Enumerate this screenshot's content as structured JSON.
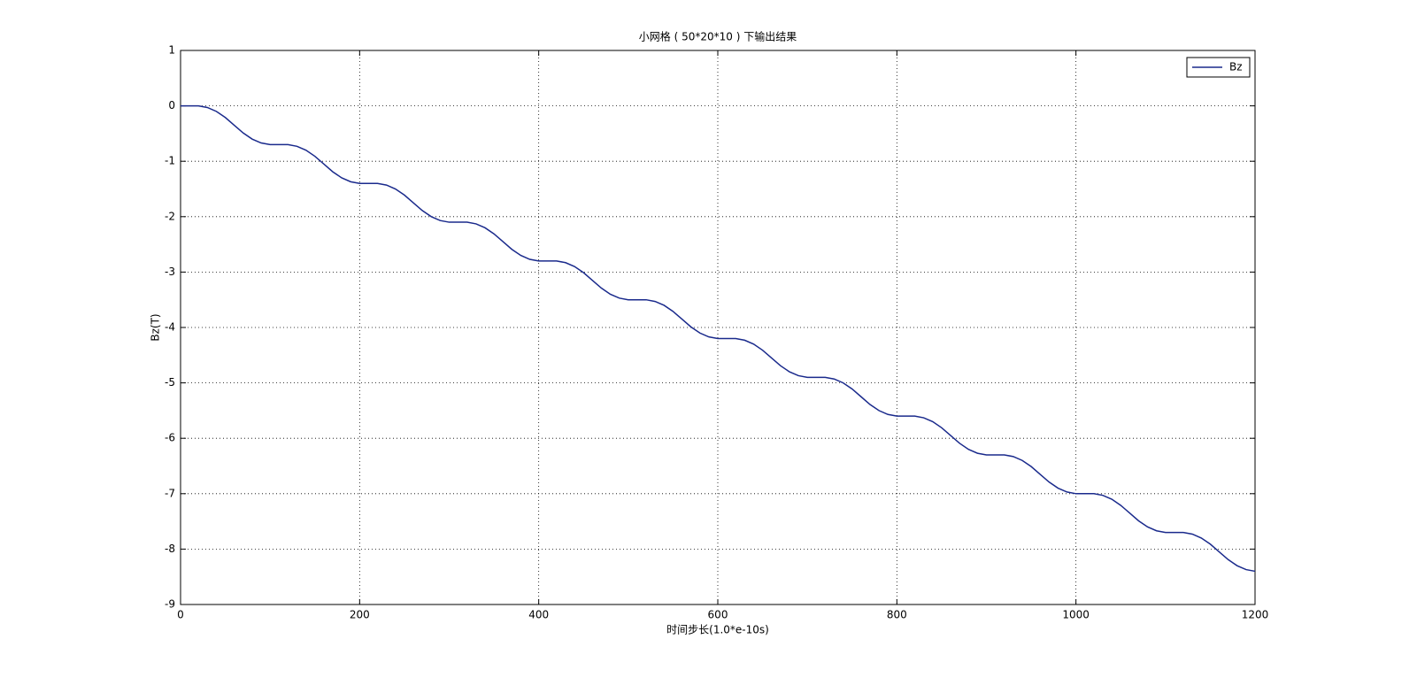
{
  "chart_data": {
    "type": "line",
    "title": "小网格 ( 50*20*10 ) 下输出结果",
    "x_label": "时间步长(1.0*e-10s)",
    "y_label": "Bz(T)",
    "x": [
      0,
      10,
      20,
      30,
      40,
      50,
      60,
      70,
      80,
      90,
      100,
      110,
      120,
      130,
      140,
      150,
      160,
      170,
      180,
      190,
      200,
      210,
      220,
      230,
      240,
      250,
      260,
      270,
      280,
      290,
      300,
      310,
      320,
      330,
      340,
      350,
      360,
      370,
      380,
      390,
      400,
      410,
      420,
      430,
      440,
      450,
      460,
      470,
      480,
      490,
      500,
      510,
      520,
      530,
      540,
      550,
      560,
      570,
      580,
      590,
      600,
      610,
      620,
      630,
      640,
      650,
      660,
      670,
      680,
      690,
      700,
      710,
      720,
      730,
      740,
      750,
      760,
      770,
      780,
      790,
      800,
      810,
      820,
      830,
      840,
      850,
      860,
      870,
      880,
      890,
      900,
      910,
      920,
      930,
      940,
      950,
      960,
      970,
      980,
      990,
      1000,
      1010,
      1020,
      1030,
      1040,
      1050,
      1060,
      1070,
      1080,
      1090,
      1100,
      1110,
      1120,
      1130,
      1140,
      1150,
      1160,
      1170,
      1180,
      1190,
      1200
    ],
    "series": [
      {
        "name": "Bz",
        "color": "#1a2a8c",
        "values": [
          0,
          0,
          0,
          -0.03,
          -0.1,
          -0.21,
          -0.35,
          -0.49,
          -0.6,
          -0.67,
          -0.7,
          -0.7,
          -0.7,
          -0.73,
          -0.8,
          -0.91,
          -1.05,
          -1.19,
          -1.3,
          -1.37,
          -1.4,
          -1.4,
          -1.4,
          -1.43,
          -1.5,
          -1.61,
          -1.75,
          -1.89,
          -2,
          -2.07,
          -2.1,
          -2.1,
          -2.1,
          -2.13,
          -2.2,
          -2.31,
          -2.45,
          -2.59,
          -2.7,
          -2.77,
          -2.8,
          -2.8,
          -2.8,
          -2.83,
          -2.9,
          -3.01,
          -3.15,
          -3.29,
          -3.4,
          -3.47,
          -3.5,
          -3.5,
          -3.5,
          -3.53,
          -3.6,
          -3.71,
          -3.85,
          -3.99,
          -4.1,
          -4.17,
          -4.2,
          -4.2,
          -4.2,
          -4.23,
          -4.3,
          -4.41,
          -4.55,
          -4.69,
          -4.8,
          -4.87,
          -4.9,
          -4.9,
          -4.9,
          -4.93,
          -5,
          -5.11,
          -5.25,
          -5.39,
          -5.5,
          -5.57,
          -5.6,
          -5.6,
          -5.6,
          -5.63,
          -5.7,
          -5.81,
          -5.95,
          -6.09,
          -6.2,
          -6.27,
          -6.3,
          -6.3,
          -6.3,
          -6.33,
          -6.4,
          -6.51,
          -6.65,
          -6.79,
          -6.9,
          -6.97,
          -7,
          -7,
          -7,
          -7.03,
          -7.1,
          -7.21,
          -7.35,
          -7.49,
          -7.6,
          -7.67,
          -7.7,
          -7.7,
          -7.7,
          -7.73,
          -7.8,
          -7.91,
          -8.05,
          -8.19,
          -8.3,
          -8.37,
          -8.4
        ]
      }
    ],
    "xlim": [
      0,
      1200
    ],
    "xticks": [
      0,
      200,
      400,
      600,
      800,
      1000,
      1200
    ],
    "ylim": [
      -9,
      1
    ],
    "yticks": [
      -9,
      -8,
      -7,
      -6,
      -5,
      -4,
      -3,
      -2,
      -1,
      0,
      1
    ],
    "grid": true,
    "legend": "upper right"
  }
}
